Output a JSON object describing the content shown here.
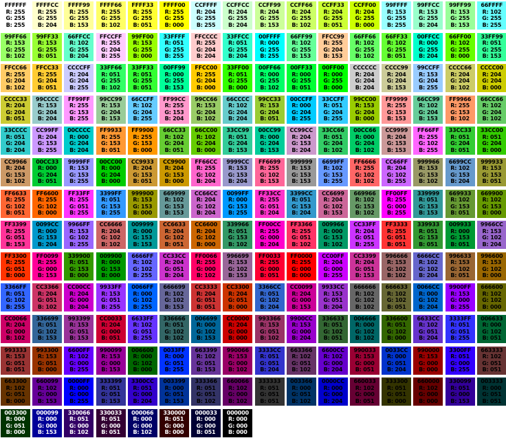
{
  "chart_data": {
    "type": "table",
    "title": "",
    "grid": {
      "columns": 16,
      "rows": 14,
      "total_cells": 216
    },
    "rgb_labels": [
      "R",
      "G",
      "B"
    ],
    "label_separator": ": ",
    "text_color_default": "#000000",
    "text_color_light": "#FFFFFF",
    "background_color": "#FFFFFF",
    "light_text_hexes": [
      "003300",
      "000099",
      "330066",
      "330033",
      "000066",
      "330000",
      "000033",
      "000000"
    ],
    "cells": [
      [
        "FFFFFF",
        "255",
        "255",
        "255"
      ],
      [
        "FFFFCC",
        "255",
        "255",
        "204"
      ],
      [
        "FFFF99",
        "255",
        "255",
        "153"
      ],
      [
        "FFFF66",
        "255",
        "255",
        "102"
      ],
      [
        "FFFF33",
        "255",
        "255",
        "051"
      ],
      [
        "FFFF00",
        "255",
        "255",
        "000"
      ],
      [
        "CCFFFF",
        "204",
        "255",
        "255"
      ],
      [
        "CCFFCC",
        "204",
        "255",
        "204"
      ],
      [
        "CCFF99",
        "204",
        "255",
        "153"
      ],
      [
        "CCFF66",
        "204",
        "255",
        "102"
      ],
      [
        "CCFF33",
        "204",
        "255",
        "051"
      ],
      [
        "CCFF00",
        "204",
        "255",
        "000"
      ],
      [
        "99FFFF",
        "153",
        "255",
        "255"
      ],
      [
        "99FFCC",
        "153",
        "255",
        "204"
      ],
      [
        "99FF99",
        "153",
        "255",
        "153"
      ],
      [
        "66FFFF",
        "102",
        "255",
        "255"
      ],
      [
        "99FF66",
        "153",
        "255",
        "102"
      ],
      [
        "99FF33",
        "153",
        "255",
        "051"
      ],
      [
        "66FFCC",
        "102",
        "255",
        "204"
      ],
      [
        "FFCCFF",
        "255",
        "204",
        "255"
      ],
      [
        "99FF00",
        "153",
        "255",
        "000"
      ],
      [
        "33FFFF",
        "051",
        "255",
        "255"
      ],
      [
        "FFCCCC",
        "255",
        "204",
        "204"
      ],
      [
        "33FFCC",
        "051",
        "255",
        "204"
      ],
      [
        "00FFFF",
        "000",
        "255",
        "255"
      ],
      [
        "66FF99",
        "102",
        "255",
        "153"
      ],
      [
        "FFCC99",
        "255",
        "204",
        "153"
      ],
      [
        "66FF66",
        "102",
        "255",
        "102"
      ],
      [
        "66FF33",
        "102",
        "255",
        "051"
      ],
      [
        "00FFCC",
        "000",
        "255",
        "204"
      ],
      [
        "66FF00",
        "102",
        "255",
        "000"
      ],
      [
        "33FF99",
        "051",
        "255",
        "153"
      ],
      [
        "FFCC66",
        "255",
        "204",
        "102"
      ],
      [
        "FFCC33",
        "255",
        "204",
        "051"
      ],
      [
        "CCCCFF",
        "204",
        "204",
        "255"
      ],
      [
        "33FF66",
        "051",
        "255",
        "102"
      ],
      [
        "33FF33",
        "051",
        "255",
        "051"
      ],
      [
        "00FF99",
        "000",
        "255",
        "153"
      ],
      [
        "FFCC00",
        "255",
        "204",
        "000"
      ],
      [
        "33FF00",
        "051",
        "255",
        "000"
      ],
      [
        "00FF66",
        "000",
        "255",
        "102"
      ],
      [
        "00FF33",
        "000",
        "255",
        "051"
      ],
      [
        "00FF00",
        "000",
        "255",
        "000"
      ],
      [
        "CCCCCC",
        "204",
        "204",
        "204"
      ],
      [
        "CCCC99",
        "204",
        "204",
        "153"
      ],
      [
        "99CCFF",
        "153",
        "204",
        "255"
      ],
      [
        "CCCC66",
        "204",
        "204",
        "102"
      ],
      [
        "CCCC00",
        "204",
        "204",
        "000"
      ],
      [
        "CCCC33",
        "204",
        "204",
        "051"
      ],
      [
        "99CCCC",
        "153",
        "204",
        "204"
      ],
      [
        "FF99FF",
        "255",
        "153",
        "255"
      ],
      [
        "99CC99",
        "153",
        "204",
        "153"
      ],
      [
        "66CCFF",
        "102",
        "204",
        "255"
      ],
      [
        "FF99CC",
        "255",
        "153",
        "204"
      ],
      [
        "99CC66",
        "153",
        "204",
        "102"
      ],
      [
        "66CCCC",
        "102",
        "204",
        "204"
      ],
      [
        "99CC33",
        "153",
        "204",
        "051"
      ],
      [
        "00CCFF",
        "000",
        "204",
        "255"
      ],
      [
        "33CCFF",
        "051",
        "204",
        "255"
      ],
      [
        "99CC00",
        "153",
        "204",
        "000"
      ],
      [
        "FF9999",
        "255",
        "153",
        "153"
      ],
      [
        "66CC99",
        "102",
        "204",
        "153"
      ],
      [
        "FF9966",
        "255",
        "153",
        "102"
      ],
      [
        "66CC66",
        "102",
        "204",
        "102"
      ],
      [
        "33CCCC",
        "051",
        "204",
        "204"
      ],
      [
        "CC99FF",
        "204",
        "153",
        "255"
      ],
      [
        "00CCCC",
        "000",
        "204",
        "204"
      ],
      [
        "FF9933",
        "255",
        "153",
        "051"
      ],
      [
        "FF9900",
        "255",
        "153",
        "000"
      ],
      [
        "66CC33",
        "102",
        "204",
        "051"
      ],
      [
        "66CC00",
        "102",
        "204",
        "000"
      ],
      [
        "33CC99",
        "051",
        "204",
        "153"
      ],
      [
        "00CC99",
        "000",
        "204",
        "153"
      ],
      [
        "CC99CC",
        "204",
        "153",
        "204"
      ],
      [
        "33CC66",
        "051",
        "204",
        "102"
      ],
      [
        "00CC66",
        "000",
        "204",
        "102"
      ],
      [
        "CC9999",
        "204",
        "153",
        "153"
      ],
      [
        "FF66FF",
        "255",
        "102",
        "255"
      ],
      [
        "33CC33",
        "051",
        "204",
        "051"
      ],
      [
        "33CC00",
        "051",
        "204",
        "000"
      ],
      [
        "CC9966",
        "204",
        "153",
        "102"
      ],
      [
        "00CC33",
        "000",
        "204",
        "051"
      ],
      [
        "9999FF",
        "153",
        "153",
        "255"
      ],
      [
        "00CC00",
        "000",
        "204",
        "000"
      ],
      [
        "CC9933",
        "204",
        "153",
        "051"
      ],
      [
        "CC9900",
        "204",
        "153",
        "000"
      ],
      [
        "FF66CC",
        "255",
        "102",
        "204"
      ],
      [
        "9999CC",
        "153",
        "153",
        "204"
      ],
      [
        "FF6699",
        "255",
        "102",
        "153"
      ],
      [
        "999999",
        "153",
        "153",
        "153"
      ],
      [
        "6699FF",
        "102",
        "153",
        "255"
      ],
      [
        "FF6666",
        "255",
        "102",
        "102"
      ],
      [
        "CC66FF",
        "204",
        "102",
        "255"
      ],
      [
        "999966",
        "153",
        "153",
        "102"
      ],
      [
        "6699CC",
        "102",
        "153",
        "204"
      ],
      [
        "999933",
        "153",
        "153",
        "051"
      ],
      [
        "FF6633",
        "255",
        "102",
        "051"
      ],
      [
        "FF6600",
        "255",
        "102",
        "000"
      ],
      [
        "FF33FF",
        "255",
        "051",
        "255"
      ],
      [
        "3399FF",
        "051",
        "153",
        "255"
      ],
      [
        "999900",
        "153",
        "153",
        "000"
      ],
      [
        "669999",
        "102",
        "153",
        "153"
      ],
      [
        "CC66CC",
        "204",
        "102",
        "204"
      ],
      [
        "0099FF",
        "000",
        "153",
        "255"
      ],
      [
        "FF33CC",
        "255",
        "051",
        "204"
      ],
      [
        "3399CC",
        "051",
        "153",
        "204"
      ],
      [
        "CC6699",
        "204",
        "102",
        "153"
      ],
      [
        "669966",
        "102",
        "153",
        "102"
      ],
      [
        "FF00FF",
        "255",
        "000",
        "255"
      ],
      [
        "339999",
        "051",
        "153",
        "153"
      ],
      [
        "669933",
        "102",
        "153",
        "051"
      ],
      [
        "669900",
        "102",
        "153",
        "000"
      ],
      [
        "FF3399",
        "255",
        "051",
        "153"
      ],
      [
        "0099CC",
        "000",
        "153",
        "204"
      ],
      [
        "9966FF",
        "153",
        "102",
        "255"
      ],
      [
        "CC6666",
        "204",
        "102",
        "102"
      ],
      [
        "009999",
        "000",
        "153",
        "153"
      ],
      [
        "CC6633",
        "204",
        "102",
        "051"
      ],
      [
        "CC6600",
        "204",
        "102",
        "000"
      ],
      [
        "339966",
        "051",
        "153",
        "102"
      ],
      [
        "FF00CC",
        "255",
        "000",
        "204"
      ],
      [
        "FF3366",
        "255",
        "051",
        "102"
      ],
      [
        "009966",
        "000",
        "153",
        "102"
      ],
      [
        "CC33FF",
        "204",
        "051",
        "255"
      ],
      [
        "FF3333",
        "255",
        "051",
        "051"
      ],
      [
        "339933",
        "051",
        "153",
        "051"
      ],
      [
        "009933",
        "000",
        "153",
        "051"
      ],
      [
        "9966CC",
        "153",
        "102",
        "204"
      ],
      [
        "FF3300",
        "255",
        "051",
        "000"
      ],
      [
        "FF0099",
        "255",
        "000",
        "153"
      ],
      [
        "339900",
        "051",
        "153",
        "000"
      ],
      [
        "009900",
        "000",
        "153",
        "000"
      ],
      [
        "6666FF",
        "102",
        "102",
        "255"
      ],
      [
        "CC33CC",
        "204",
        "051",
        "204"
      ],
      [
        "FF0066",
        "255",
        "000",
        "102"
      ],
      [
        "996699",
        "153",
        "102",
        "153"
      ],
      [
        "FF0033",
        "255",
        "000",
        "051"
      ],
      [
        "FF0000",
        "255",
        "000",
        "000"
      ],
      [
        "CC00FF",
        "204",
        "000",
        "255"
      ],
      [
        "CC3399",
        "204",
        "051",
        "153"
      ],
      [
        "996666",
        "153",
        "102",
        "102"
      ],
      [
        "6666CC",
        "102",
        "102",
        "204"
      ],
      [
        "996633",
        "153",
        "102",
        "051"
      ],
      [
        "996600",
        "153",
        "102",
        "000"
      ],
      [
        "3366FF",
        "051",
        "102",
        "255"
      ],
      [
        "CC3366",
        "204",
        "051",
        "102"
      ],
      [
        "CC00CC",
        "204",
        "000",
        "204"
      ],
      [
        "9933FF",
        "153",
        "051",
        "255"
      ],
      [
        "0066FF",
        "000",
        "102",
        "255"
      ],
      [
        "666699",
        "102",
        "102",
        "153"
      ],
      [
        "CC3333",
        "204",
        "051",
        "051"
      ],
      [
        "CC3300",
        "204",
        "051",
        "000"
      ],
      [
        "3366CC",
        "051",
        "102",
        "204"
      ],
      [
        "CC0099",
        "204",
        "000",
        "153"
      ],
      [
        "9933CC",
        "153",
        "051",
        "204"
      ],
      [
        "666666",
        "102",
        "102",
        "102"
      ],
      [
        "666633",
        "102",
        "102",
        "051"
      ],
      [
        "0066CC",
        "000",
        "102",
        "204"
      ],
      [
        "9900FF",
        "153",
        "000",
        "255"
      ],
      [
        "666600",
        "102",
        "102",
        "000"
      ],
      [
        "CC0066",
        "204",
        "000",
        "102"
      ],
      [
        "336699",
        "051",
        "102",
        "153"
      ],
      [
        "993399",
        "153",
        "051",
        "153"
      ],
      [
        "CC0033",
        "204",
        "000",
        "051"
      ],
      [
        "6633FF",
        "102",
        "051",
        "255"
      ],
      [
        "336666",
        "051",
        "102",
        "102"
      ],
      [
        "006699",
        "000",
        "102",
        "153"
      ],
      [
        "CC0000",
        "204",
        "000",
        "000"
      ],
      [
        "993366",
        "153",
        "051",
        "102"
      ],
      [
        "9900CC",
        "153",
        "000",
        "204"
      ],
      [
        "336633",
        "051",
        "102",
        "051"
      ],
      [
        "006666",
        "000",
        "102",
        "102"
      ],
      [
        "336600",
        "051",
        "102",
        "000"
      ],
      [
        "6633CC",
        "102",
        "051",
        "204"
      ],
      [
        "3333FF",
        "051",
        "051",
        "255"
      ],
      [
        "006633",
        "000",
        "102",
        "051"
      ],
      [
        "993333",
        "153",
        "051",
        "051"
      ],
      [
        "993300",
        "153",
        "051",
        "000"
      ],
      [
        "6600FF",
        "102",
        "000",
        "255"
      ],
      [
        "990099",
        "153",
        "000",
        "153"
      ],
      [
        "006600",
        "000",
        "102",
        "000"
      ],
      [
        "0033FF",
        "000",
        "051",
        "255"
      ],
      [
        "663399",
        "102",
        "051",
        "153"
      ],
      [
        "990066",
        "153",
        "000",
        "102"
      ],
      [
        "3333CC",
        "051",
        "051",
        "204"
      ],
      [
        "663366",
        "102",
        "051",
        "102"
      ],
      [
        "6600CC",
        "102",
        "000",
        "204"
      ],
      [
        "990033",
        "153",
        "000",
        "051"
      ],
      [
        "0033CC",
        "000",
        "051",
        "204"
      ],
      [
        "990000",
        "153",
        "000",
        "000"
      ],
      [
        "3300FF",
        "051",
        "000",
        "255"
      ],
      [
        "663333",
        "102",
        "051",
        "051"
      ],
      [
        "663300",
        "102",
        "051",
        "000"
      ],
      [
        "660099",
        "102",
        "000",
        "153"
      ],
      [
        "0000FF",
        "000",
        "000",
        "255"
      ],
      [
        "333399",
        "051",
        "051",
        "153"
      ],
      [
        "3300CC",
        "051",
        "000",
        "204"
      ],
      [
        "003399",
        "000",
        "051",
        "153"
      ],
      [
        "333366",
        "051",
        "051",
        "102"
      ],
      [
        "660066",
        "102",
        "000",
        "102"
      ],
      [
        "333333",
        "051",
        "051",
        "051"
      ],
      [
        "003366",
        "000",
        "051",
        "102"
      ],
      [
        "0000CC",
        "000",
        "000",
        "204"
      ],
      [
        "660033",
        "102",
        "000",
        "051"
      ],
      [
        "333300",
        "051",
        "051",
        "000"
      ],
      [
        "660000",
        "102",
        "000",
        "000"
      ],
      [
        "330099",
        "051",
        "000",
        "153"
      ],
      [
        "003333",
        "000",
        "051",
        "051"
      ],
      [
        "003300",
        "000",
        "051",
        "000"
      ],
      [
        "000099",
        "000",
        "000",
        "153"
      ],
      [
        "330066",
        "051",
        "000",
        "102"
      ],
      [
        "330033",
        "051",
        "000",
        "051"
      ],
      [
        "000066",
        "000",
        "000",
        "102"
      ],
      [
        "330000",
        "051",
        "000",
        "000"
      ],
      [
        "000033",
        "000",
        "000",
        "051"
      ],
      [
        "000000",
        "000",
        "000",
        "000"
      ]
    ]
  }
}
